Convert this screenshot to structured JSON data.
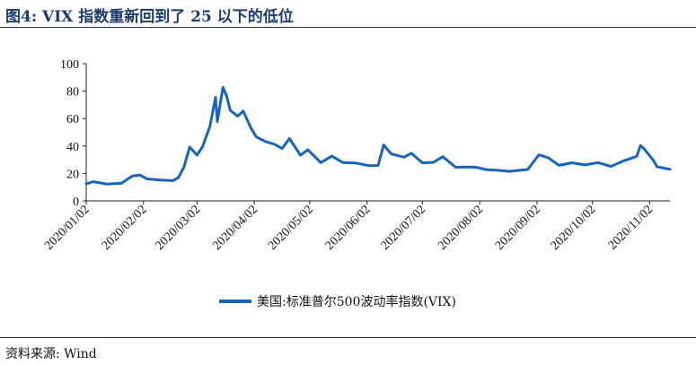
{
  "header": {
    "title": "图4:  VIX 指数重新回到了 25 以下的低位"
  },
  "footer": {
    "source": "资料来源:  Wind"
  },
  "colors": {
    "series": "#1565c0",
    "title": "#1b3b73"
  },
  "chart_data": {
    "type": "line",
    "title": "",
    "xlabel": "",
    "ylabel": "",
    "ylim": [
      0,
      100
    ],
    "yticks": [
      0,
      20,
      40,
      60,
      80,
      100
    ],
    "xticks": [
      "2020/01/02",
      "2020/02/02",
      "2020/03/02",
      "2020/04/02",
      "2020/05/02",
      "2020/06/02",
      "2020/07/02",
      "2020/08/02",
      "2020/09/02",
      "2020/10/02",
      "2020/11/02"
    ],
    "grid": false,
    "legend_position": "bottom-center",
    "series": [
      {
        "name": "美国:标准普尔500波动率指数(VIX)",
        "points": [
          [
            "2020-01-02",
            12.5
          ],
          [
            "2020-01-06",
            14.0
          ],
          [
            "2020-01-13",
            12.3
          ],
          [
            "2020-01-21",
            12.8
          ],
          [
            "2020-01-27",
            18.2
          ],
          [
            "2020-01-31",
            18.8
          ],
          [
            "2020-02-04",
            16.0
          ],
          [
            "2020-02-11",
            15.2
          ],
          [
            "2020-02-18",
            14.8
          ],
          [
            "2020-02-21",
            17.1
          ],
          [
            "2020-02-24",
            25.0
          ],
          [
            "2020-02-27",
            39.2
          ],
          [
            "2020-03-02",
            33.4
          ],
          [
            "2020-03-05",
            39.6
          ],
          [
            "2020-03-09",
            54.5
          ],
          [
            "2020-03-12",
            75.5
          ],
          [
            "2020-03-13",
            57.8
          ],
          [
            "2020-03-16",
            82.7
          ],
          [
            "2020-03-18",
            76.5
          ],
          [
            "2020-03-20",
            66.0
          ],
          [
            "2020-03-24",
            61.7
          ],
          [
            "2020-03-27",
            65.5
          ],
          [
            "2020-03-31",
            53.5
          ],
          [
            "2020-04-03",
            46.8
          ],
          [
            "2020-04-08",
            43.3
          ],
          [
            "2020-04-13",
            41.2
          ],
          [
            "2020-04-17",
            38.2
          ],
          [
            "2020-04-21",
            45.4
          ],
          [
            "2020-04-27",
            33.3
          ],
          [
            "2020-05-01",
            37.2
          ],
          [
            "2020-05-08",
            27.9
          ],
          [
            "2020-05-14",
            32.6
          ],
          [
            "2020-05-20",
            27.9
          ],
          [
            "2020-05-27",
            27.6
          ],
          [
            "2020-06-03",
            25.7
          ],
          [
            "2020-06-08",
            25.8
          ],
          [
            "2020-06-11",
            40.8
          ],
          [
            "2020-06-15",
            34.4
          ],
          [
            "2020-06-22",
            31.8
          ],
          [
            "2020-06-26",
            34.7
          ],
          [
            "2020-07-02",
            27.7
          ],
          [
            "2020-07-08",
            28.1
          ],
          [
            "2020-07-13",
            32.2
          ],
          [
            "2020-07-20",
            24.5
          ],
          [
            "2020-07-27",
            24.7
          ],
          [
            "2020-07-31",
            24.5
          ],
          [
            "2020-08-06",
            22.7
          ],
          [
            "2020-08-12",
            22.3
          ],
          [
            "2020-08-18",
            21.5
          ],
          [
            "2020-08-24",
            22.4
          ],
          [
            "2020-08-28",
            22.9
          ],
          [
            "2020-09-03",
            33.6
          ],
          [
            "2020-09-08",
            31.5
          ],
          [
            "2020-09-14",
            25.9
          ],
          [
            "2020-09-21",
            27.8
          ],
          [
            "2020-09-28",
            26.2
          ],
          [
            "2020-10-05",
            27.9
          ],
          [
            "2020-10-12",
            25.1
          ],
          [
            "2020-10-19",
            29.2
          ],
          [
            "2020-10-26",
            32.5
          ],
          [
            "2020-10-28",
            40.3
          ],
          [
            "2020-10-30",
            38.0
          ],
          [
            "2020-11-04",
            29.6
          ],
          [
            "2020-11-06",
            24.9
          ],
          [
            "2020-11-11",
            23.5
          ],
          [
            "2020-11-13",
            23.1
          ]
        ]
      }
    ]
  }
}
